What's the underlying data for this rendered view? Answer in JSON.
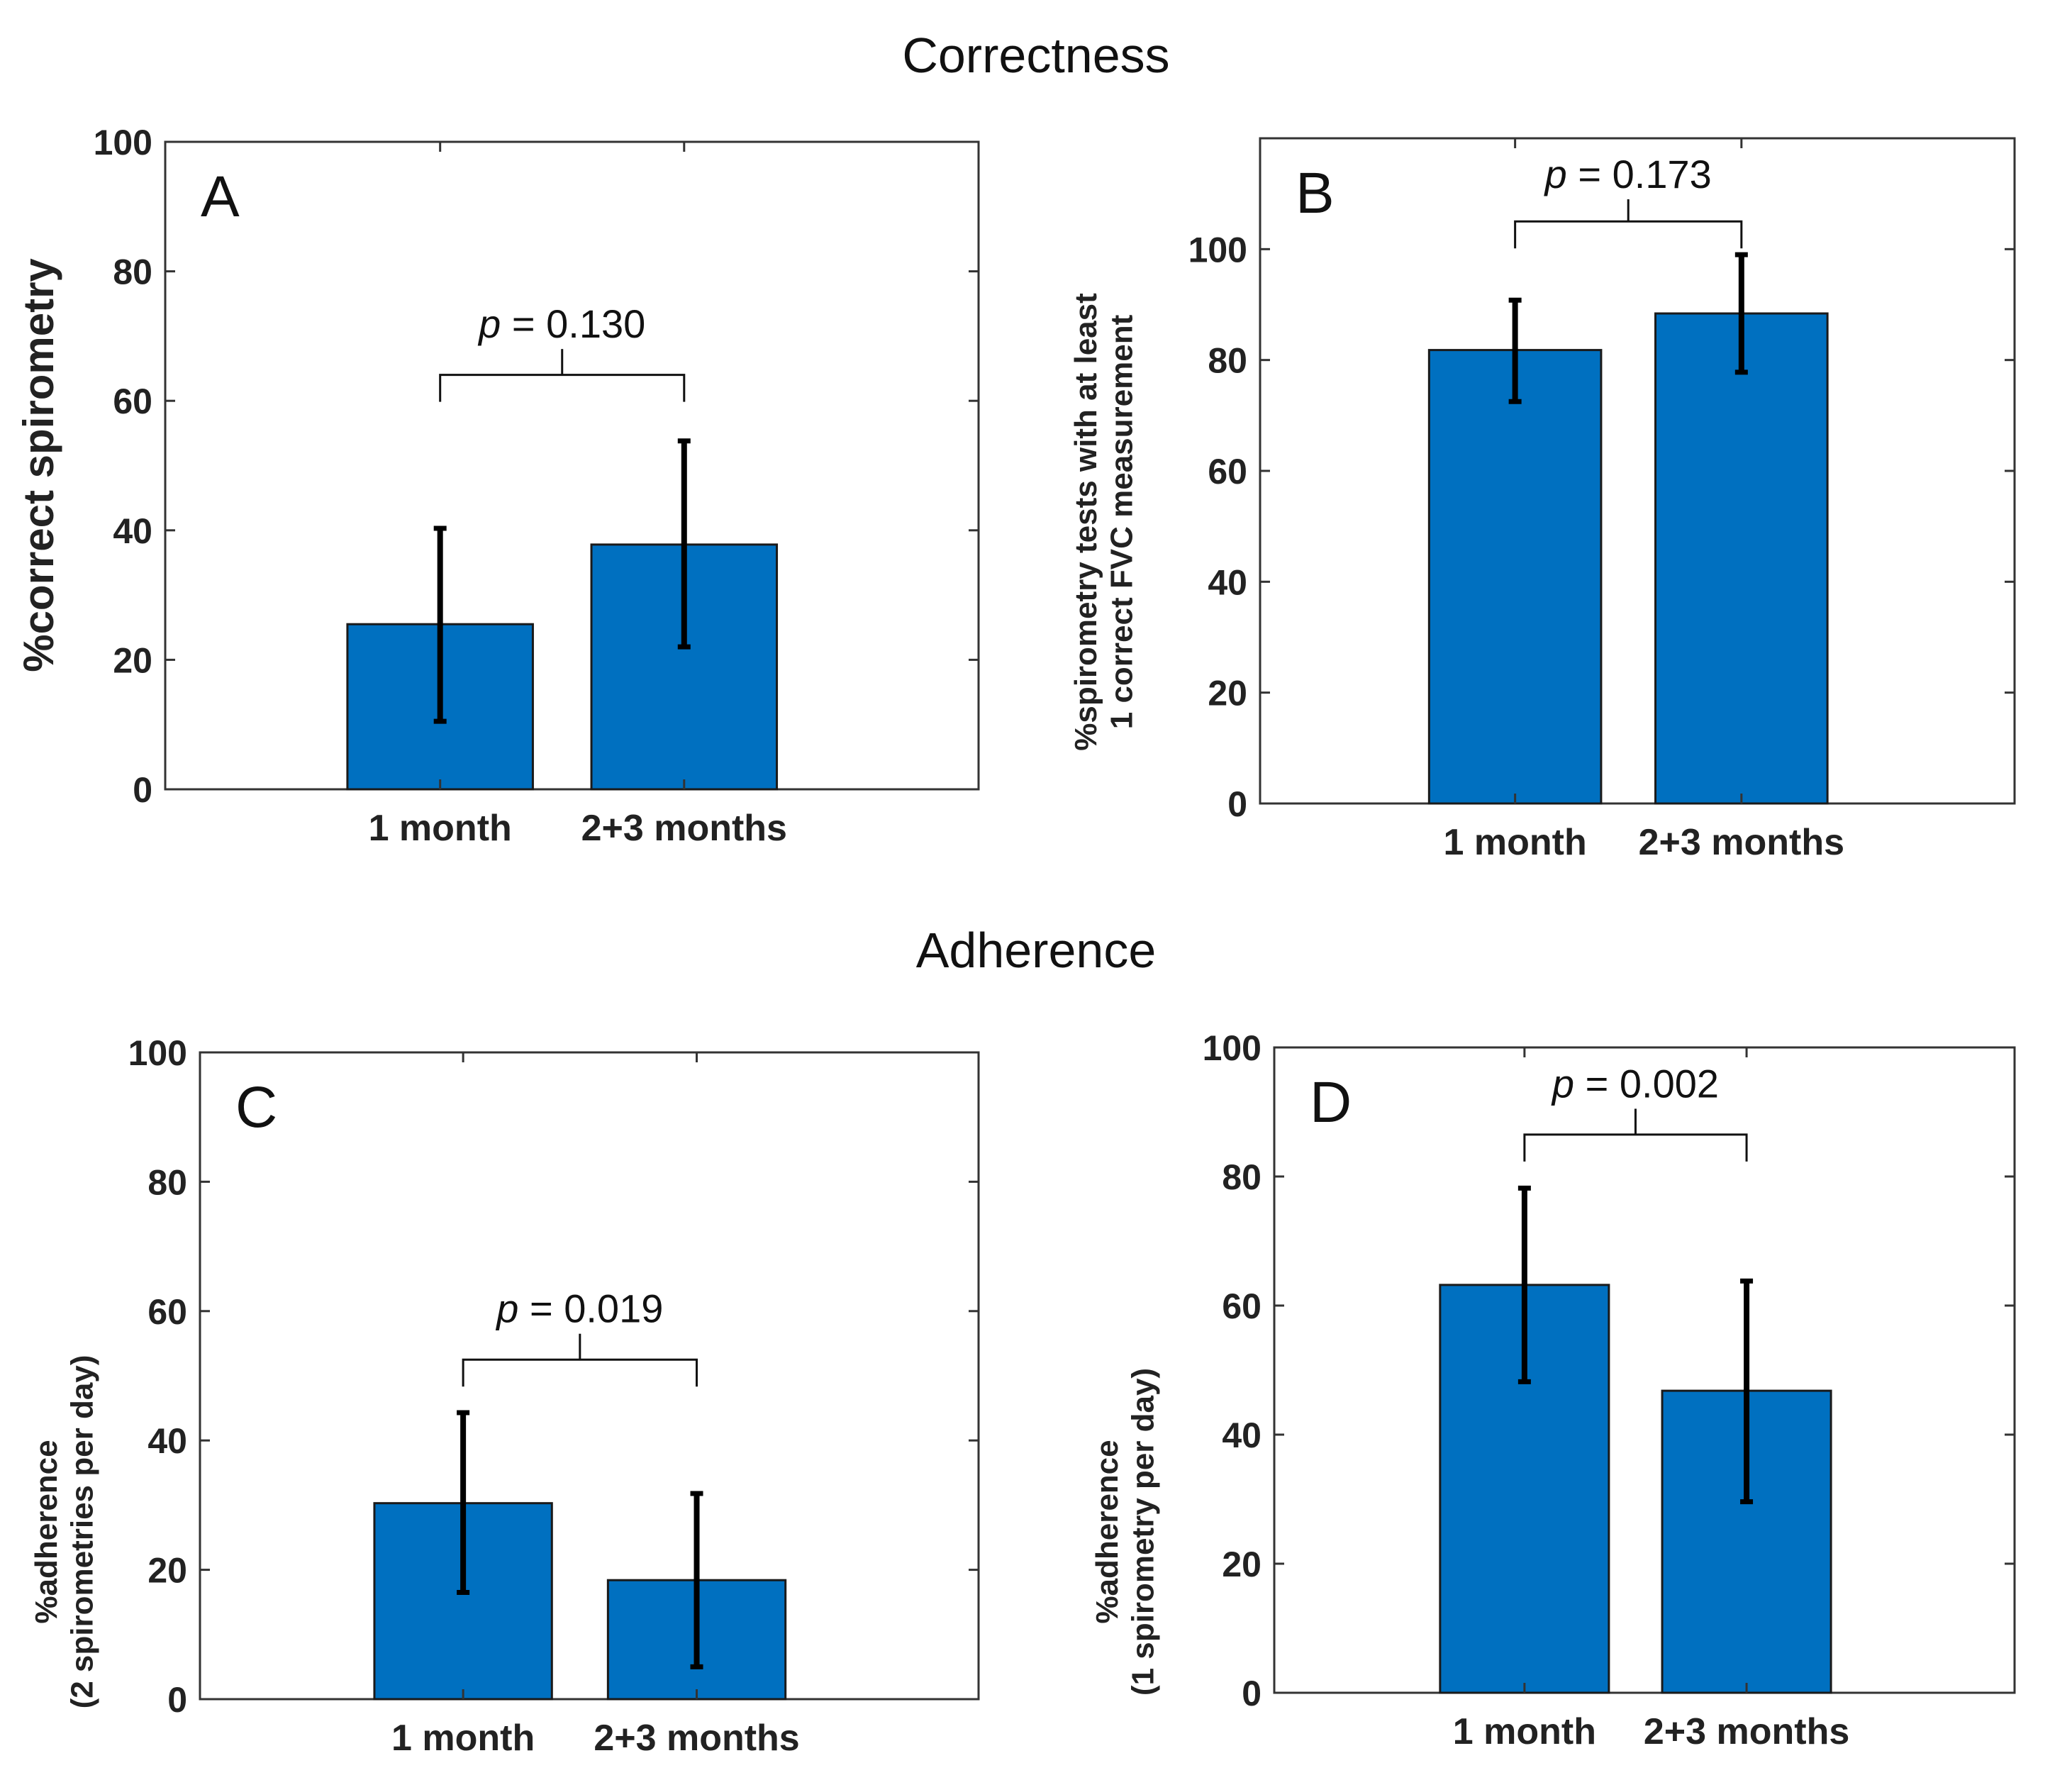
{
  "sections": {
    "correctness": "Correctness",
    "adherence": "Adherence"
  },
  "colors": {
    "bar": "#0070C0",
    "axis": "#333333",
    "text": "#222222"
  },
  "chart_data": [
    {
      "type": "bar",
      "panel_label": "A",
      "categories": [
        "1 month",
        "2+3 months"
      ],
      "values": [
        25.5,
        37.8
      ],
      "error_low": [
        10.5,
        22.0
      ],
      "error_high": [
        40.3,
        53.8
      ],
      "ylabel_lines": [
        "%correct spirometry"
      ],
      "ylim": [
        0,
        100
      ],
      "yticks": [
        0,
        20,
        40,
        60,
        80,
        100
      ],
      "ytick_labels": [
        "0",
        "20",
        "40",
        "60",
        "80",
        "100"
      ],
      "pvalue_symbol": "p",
      "pvalue_text": " = 0.130",
      "bracket_level": 64,
      "bracket_top": 68
    },
    {
      "type": "bar",
      "panel_label": "B",
      "categories": [
        "1 month",
        "2+3 months"
      ],
      "values": [
        81.8,
        88.4
      ],
      "error_low": [
        72.5,
        77.8
      ],
      "error_high": [
        90.8,
        99.0
      ],
      "ylabel_lines": [
        "%spirometry tests with at least",
        "1 correct FVC measurement"
      ],
      "ylim": [
        0,
        120
      ],
      "yticks": [
        0,
        20,
        40,
        60,
        80,
        100
      ],
      "ytick_labels": [
        "0",
        "20",
        "40",
        "60",
        "80",
        "100"
      ],
      "pvalue_symbol": "p",
      "pvalue_text": " = 0.173",
      "bracket_level": 105,
      "bracket_top": 109
    },
    {
      "type": "bar",
      "panel_label": "C",
      "categories": [
        "1 month",
        "2+3 months"
      ],
      "values": [
        30.3,
        18.4
      ],
      "error_low": [
        16.5,
        5.0
      ],
      "error_high": [
        44.3,
        31.8
      ],
      "ylabel_lines": [
        "%adherence",
        "(2 spirometries per day)"
      ],
      "ylim": [
        0,
        100
      ],
      "yticks": [
        0,
        20,
        40,
        60,
        80,
        100
      ],
      "ytick_labels": [
        "0",
        "20",
        "40",
        "60",
        "80",
        "100"
      ],
      "pvalue_symbol": "p",
      "pvalue_text": " = 0.019",
      "bracket_level": 52.5,
      "bracket_top": 56.5
    },
    {
      "type": "bar",
      "panel_label": "D",
      "categories": [
        "1 month",
        "2+3 months"
      ],
      "values": [
        63.2,
        46.8
      ],
      "error_low": [
        48.2,
        29.6
      ],
      "error_high": [
        78.2,
        63.8
      ],
      "ylabel_lines": [
        "%adherence",
        "(1 spirometry per day)"
      ],
      "ylim": [
        0,
        100
      ],
      "yticks": [
        0,
        20,
        40,
        60,
        80,
        100
      ],
      "ytick_labels": [
        "0",
        "20",
        "40",
        "60",
        "80",
        "100"
      ],
      "pvalue_symbol": "p",
      "pvalue_text": " = 0.002",
      "bracket_level": 86.5,
      "bracket_top": 90.5
    }
  ]
}
